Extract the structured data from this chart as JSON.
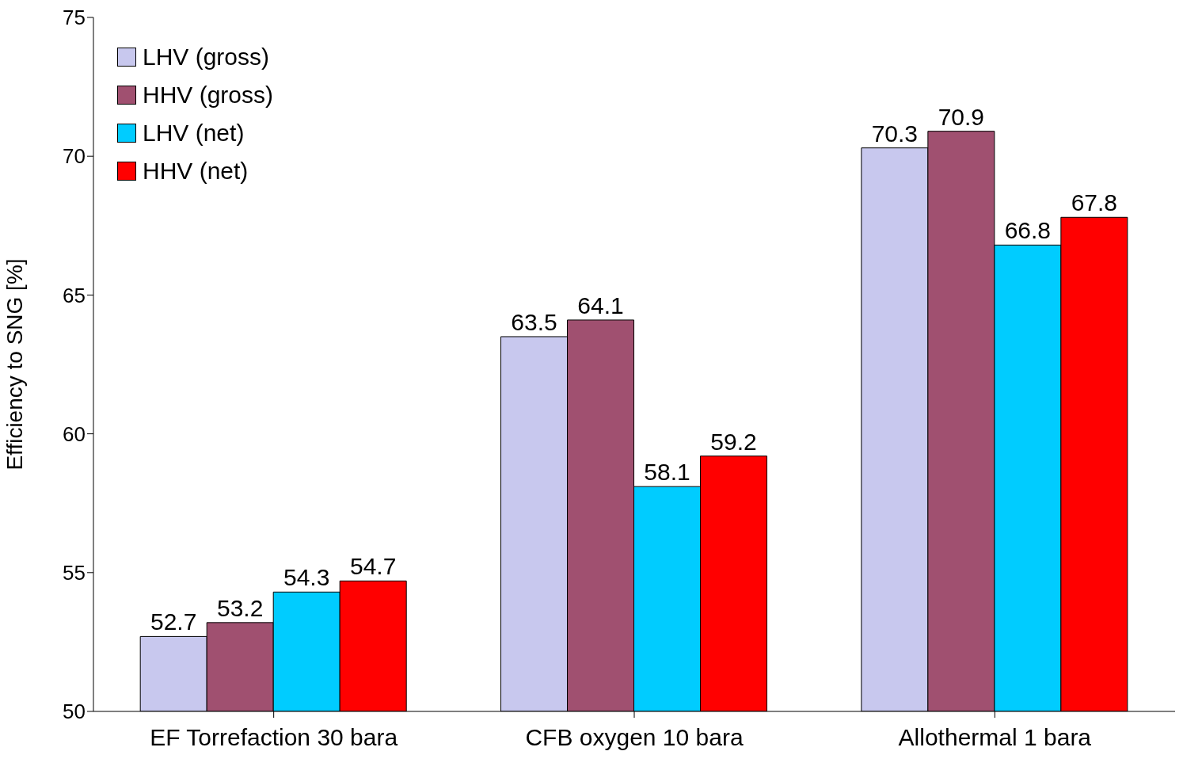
{
  "chart_data": {
    "type": "bar",
    "ylabel": "Efficiency to SNG [%]",
    "categories": [
      "EF Torrefaction 30 bara",
      "CFB oxygen 10 bara",
      "Allothermal 1 bara"
    ],
    "series": [
      {
        "name": "LHV (gross)",
        "color": "#c8c8ee",
        "values": [
          52.7,
          63.5,
          70.3
        ]
      },
      {
        "name": "HHV (gross)",
        "color": "#a05070",
        "values": [
          53.2,
          64.1,
          70.9
        ]
      },
      {
        "name": "LHV (net)",
        "color": "#00ccff",
        "values": [
          54.3,
          58.1,
          66.8
        ]
      },
      {
        "name": "HHV (net)",
        "color": "#ff0000",
        "values": [
          54.7,
          59.2,
          67.8
        ]
      }
    ],
    "ylim": [
      50,
      75
    ],
    "yticks": [
      50,
      55,
      60,
      65,
      70,
      75
    ],
    "grid": false,
    "legend": "top left",
    "data_labels": true
  }
}
